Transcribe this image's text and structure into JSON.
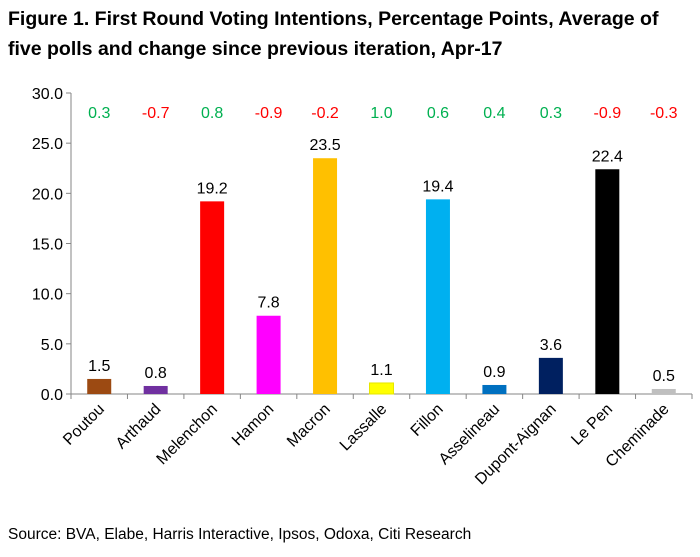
{
  "figure": {
    "title_line1": "Figure 1. First Round Voting Intentions, Percentage Points, Average of",
    "title_line2": "five polls and change since previous iteration, Apr-17",
    "source": "Source: BVA, Elabe, Harris Interactive, Ipsos, Odoxa, Citi Research"
  },
  "chart_data": {
    "type": "bar",
    "categories": [
      "Poutou",
      "Arthaud",
      "Melenchon",
      "Hamon",
      "Macron",
      "Lassalle",
      "Fillon",
      "Asselineau",
      "Dupont-Aignan",
      "Le Pen",
      "Cheminade"
    ],
    "values": [
      1.5,
      0.8,
      19.2,
      7.8,
      23.5,
      1.1,
      19.4,
      0.9,
      3.6,
      22.4,
      0.5
    ],
    "value_labels": [
      "1.5",
      "0.8",
      "19.2",
      "7.8",
      "23.5",
      "1.1",
      "19.4",
      "0.9",
      "3.6",
      "22.4",
      "0.5"
    ],
    "changes": [
      0.3,
      -0.7,
      0.8,
      -0.9,
      -0.2,
      1.0,
      0.6,
      0.4,
      0.3,
      -0.9,
      -0.3
    ],
    "change_labels": [
      "0.3",
      "-0.7",
      "0.8",
      "-0.9",
      "-0.2",
      "1.0",
      "0.6",
      "0.4",
      "0.3",
      "-0.9",
      "-0.3"
    ],
    "bar_colors": [
      "#9c4a12",
      "#7030a0",
      "#ff0000",
      "#ff00ff",
      "#ffc000",
      "#ffff00",
      "#00b0f0",
      "#0070c0",
      "#002060",
      "#000000",
      "#bfbfbf"
    ],
    "positive_color": "#00b050",
    "negative_color": "#ff0000",
    "ylim": [
      0,
      30
    ],
    "yticks": [
      "0.0",
      "5.0",
      "10.0",
      "15.0",
      "20.0",
      "25.0",
      "30.0"
    ],
    "grid": false,
    "legend": "none"
  }
}
